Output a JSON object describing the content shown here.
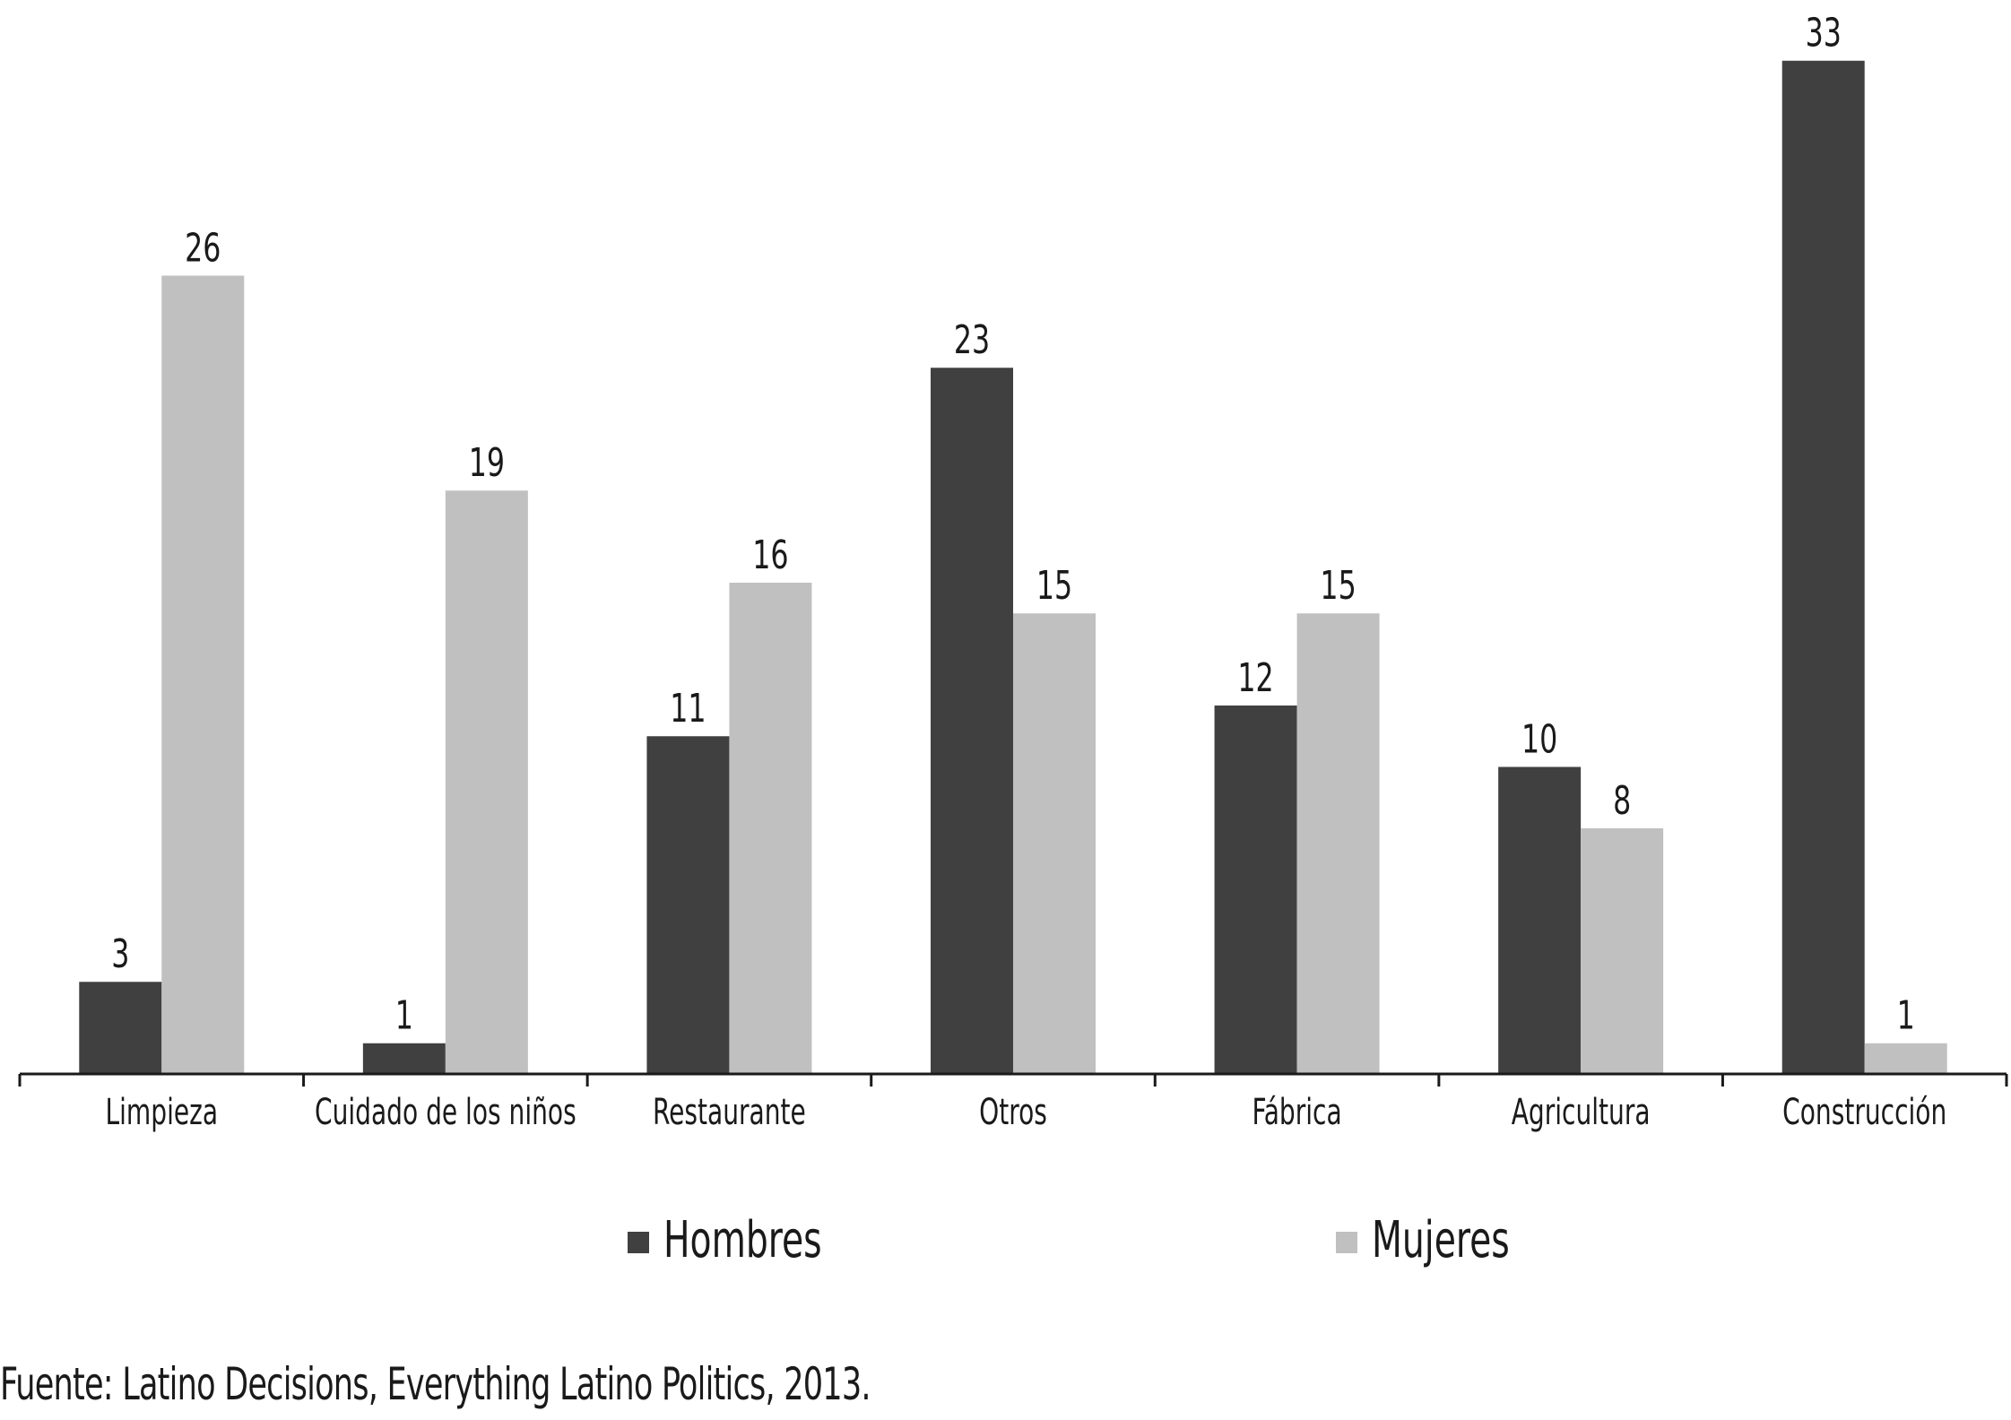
{
  "chart_data": {
    "type": "bar",
    "title": "",
    "xlabel": "",
    "ylabel": "",
    "ylim": [
      0,
      34.5
    ],
    "grid": false,
    "legend_position": "bottom",
    "categories": [
      "Limpieza",
      "Cuidado de los niños",
      "Restaurante",
      "Otros",
      "Fábrica",
      "Agricultura",
      "Construcción"
    ],
    "series": [
      {
        "name": "Hombres",
        "color": "#404040",
        "values": [
          3,
          1,
          11,
          23,
          12,
          10,
          33
        ]
      },
      {
        "name": "Mujeres",
        "color": "#c0c0c0",
        "values": [
          26,
          19,
          16,
          15,
          15,
          8,
          1
        ]
      }
    ]
  },
  "source": "Fuente: Latino Decisions, Everything Latino Politics, 2013."
}
